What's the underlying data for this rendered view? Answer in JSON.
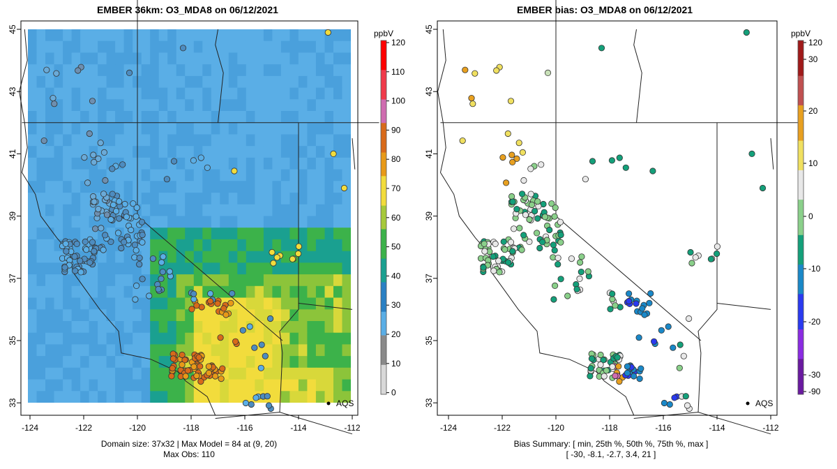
{
  "panels": {
    "left": {
      "title": "EMBER 36km: O3_MDA8 on 06/12/2021",
      "caption_line1": "Domain size: 37x32 | Max Model = 84 at (9, 20)",
      "caption_line2": "Max Obs: 110",
      "legend_label": "AQS",
      "colorbar": {
        "unit": "ppbV",
        "ticks": [
          "120",
          "110",
          "100",
          "90",
          "80",
          "70",
          "60",
          "50",
          "40",
          "30",
          "20",
          "10",
          "0"
        ]
      }
    },
    "right": {
      "title": "EMBER bias: O3_MDA8 on 06/12/2021",
      "caption_line1": "Bias Summary: [ min, 25th %, 50th %, 75th %, max ]",
      "caption_line2": "[ -30,   -8.1,   -2.7,   3.4,   21 ]",
      "legend_label": "AQS",
      "colorbar": {
        "unit": "ppbV",
        "ticks": [
          "120",
          "30",
          "20",
          "10",
          "0",
          "-10",
          "-20",
          "-30",
          "-90"
        ]
      }
    }
  },
  "axes": {
    "x_ticks": [
      "-124",
      "-122",
      "-120",
      "-118",
      "-116",
      "-114",
      "-112"
    ],
    "y_ticks": [
      "45",
      "43",
      "41",
      "39",
      "37",
      "35",
      "33"
    ]
  },
  "colors": {
    "ramp_conc": [
      "#d8d8d8",
      "#8a8a8a",
      "#5aaee6",
      "#2a80c4",
      "#1aa090",
      "#3cb24a",
      "#a6c93a",
      "#f2dc3c",
      "#e89a18",
      "#d86a1a",
      "#cf6cb0",
      "#f03a4a",
      "#ff0000"
    ],
    "ramp_bias": [
      "#6a1aa0",
      "#8a2be2",
      "#2a3af0",
      "#1a88c8",
      "#14a07a",
      "#8ad08a",
      "#e8e8e8",
      "#f0e060",
      "#e8a020",
      "#c05050",
      "#a01a1a"
    ]
  }
}
